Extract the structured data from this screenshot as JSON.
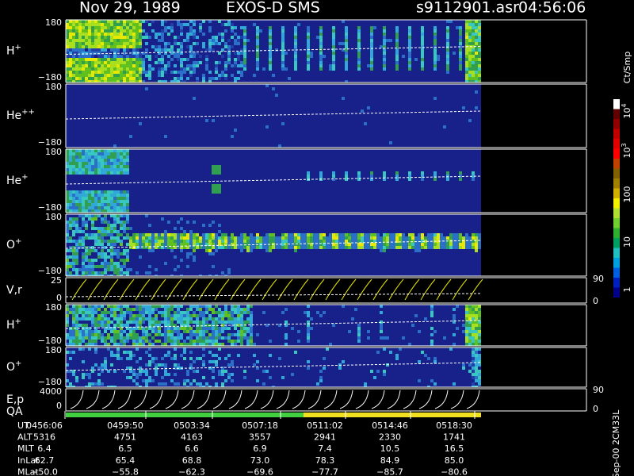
{
  "header": {
    "date": "Nov 29, 1989",
    "instrument": "EXOS-D SMS",
    "file": "s9112901.asr",
    "time": "04:56:06"
  },
  "panels": [
    {
      "species": "H",
      "charge": "+",
      "top": "180",
      "bottom": "−180"
    },
    {
      "species": "He",
      "charge": "++",
      "top": "180",
      "bottom": "−180"
    },
    {
      "species": "He",
      "charge": "+",
      "top": "180",
      "bottom": "−180"
    },
    {
      "species": "O",
      "charge": "+",
      "top": "180",
      "bottom": "−180"
    },
    {
      "species": "V,r",
      "top": "25",
      "bottom": "0",
      "right_top": "90",
      "right_bottom": "0"
    },
    {
      "species": "H",
      "charge": "+",
      "top": "180",
      "bottom": "−180"
    },
    {
      "species": "O",
      "charge": "+",
      "top": "180",
      "bottom": "−180"
    },
    {
      "species": "E,p",
      "top": "4000",
      "bottom": "0",
      "right_top": "90",
      "right_bottom": "0"
    }
  ],
  "qa": "QA",
  "colorbar": {
    "unit": "Ct/Smp",
    "ticks": [
      {
        "base": "10",
        "exp": "4"
      },
      {
        "base": "10",
        "exp": "3"
      },
      {
        "base": "100"
      },
      {
        "base": "10"
      },
      {
        "base": "1"
      }
    ]
  },
  "table": {
    "rows": [
      {
        "label": "UT",
        "values": [
          "0456:06",
          "0459:50",
          "0503:34",
          "0507:18",
          "0511:02",
          "0514:46",
          "0518:30"
        ]
      },
      {
        "label": "ALT",
        "values": [
          "5316",
          "4751",
          "4163",
          "3557",
          "2941",
          "2330",
          "1741"
        ]
      },
      {
        "label": "MLT",
        "values": [
          "6.4",
          "6.5",
          "6.6",
          "6.9",
          "7.4",
          "10.5",
          "16.5"
        ]
      },
      {
        "label": "InLat",
        "values": [
          "62.7",
          "65.4",
          "68.8",
          "73.0",
          "78.3",
          "84.9",
          "85.0"
        ]
      },
      {
        "label": "MLat",
        "values": [
          "−50.0",
          "−55.8",
          "−62.3",
          "−69.6",
          "−77.7",
          "−85.7",
          "−80.6"
        ]
      }
    ]
  },
  "footer": "Sep-00 2CM33L"
}
